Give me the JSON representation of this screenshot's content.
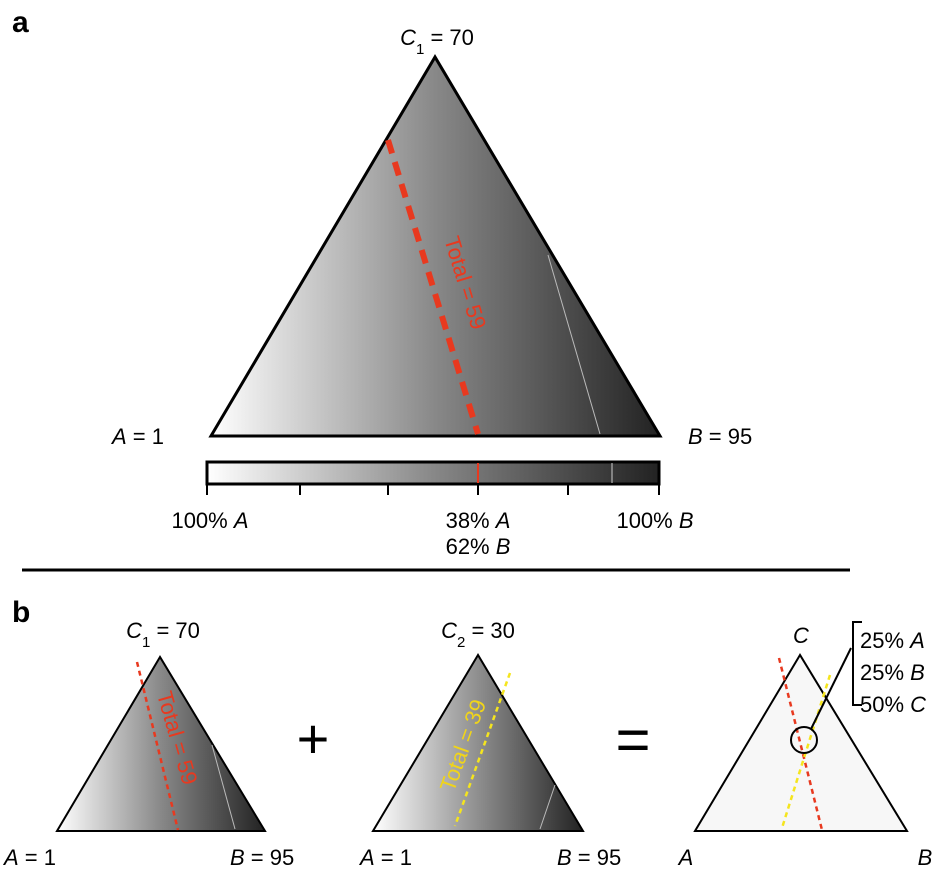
{
  "panel_a": {
    "letter": "a",
    "top_label": {
      "var": "C",
      "sub": "1",
      "rest": " = 70"
    },
    "left_label": {
      "var": "A",
      "rest": " = 1"
    },
    "right_label": {
      "var": "B",
      "rest": " = 95"
    },
    "line_label": "Total = 59",
    "scale_left": {
      "pct": "100% ",
      "var": "A"
    },
    "scale_mid_1": {
      "pct": "38% ",
      "var": "A"
    },
    "scale_mid_2": {
      "pct": "62% ",
      "var": "B"
    },
    "scale_right": {
      "pct": "100% ",
      "var": "B"
    }
  },
  "panel_b": {
    "letter": "b",
    "first": {
      "top_label": {
        "var": "C",
        "sub": "1",
        "rest": " = 70"
      },
      "line_label": "Total = 59",
      "left_label": {
        "var": "A",
        "rest": " = 1"
      },
      "right_label": {
        "var": "B",
        "rest": " = 95"
      }
    },
    "plus": "+",
    "second": {
      "top_label": {
        "var": "C",
        "sub": "2",
        "rest": " = 30"
      },
      "line_label": "Total = 39",
      "left_label": {
        "var": "A",
        "rest": " = 1"
      },
      "right_label": {
        "var": "B",
        "rest": " = 95"
      }
    },
    "equals": "=",
    "result": {
      "top": "C",
      "left": "A",
      "right": "B",
      "composition": [
        {
          "pct": "25% ",
          "var": "A"
        },
        {
          "pct": "25% ",
          "var": "B"
        },
        {
          "pct": "50% ",
          "var": "C"
        }
      ]
    }
  }
}
